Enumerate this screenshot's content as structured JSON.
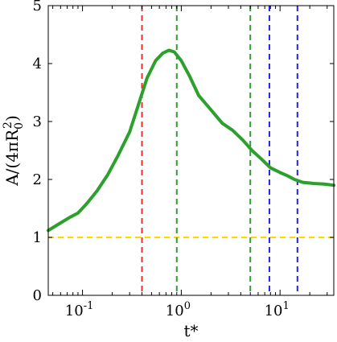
{
  "chart_data": {
    "type": "line",
    "title": "",
    "xlabel": "t*",
    "ylabel": "A/(4πR₀²)",
    "x_scale": "log",
    "xlim": [
      0.045,
      35
    ],
    "ylim": [
      0,
      5
    ],
    "grid": false,
    "legend": "none",
    "x_ticks": [
      {
        "value": 0.1,
        "base": "10",
        "exp": "-1"
      },
      {
        "value": 1,
        "base": "10",
        "exp": "0"
      },
      {
        "value": 10,
        "base": "10",
        "exp": "1"
      }
    ],
    "y_ticks": [
      0,
      1,
      2,
      3,
      4,
      5
    ],
    "y_tick_labels": [
      "0",
      "1",
      "2",
      "3",
      "4",
      "5"
    ],
    "series": [
      {
        "color": "#2ca02c",
        "x": [
          0.045,
          0.06,
          0.075,
          0.09,
          0.11,
          0.14,
          0.18,
          0.23,
          0.3,
          0.37,
          0.45,
          0.55,
          0.65,
          0.75,
          0.85,
          1.0,
          1.2,
          1.5,
          2.0,
          2.6,
          3.3,
          4.2,
          5.2,
          6.5,
          8.0,
          10.0,
          12.0,
          14.0,
          17.0,
          22.0,
          28.0,
          35.0
        ],
        "y": [
          1.12,
          1.25,
          1.35,
          1.42,
          1.58,
          1.8,
          2.08,
          2.42,
          2.82,
          3.3,
          3.75,
          4.05,
          4.18,
          4.23,
          4.2,
          4.05,
          3.8,
          3.45,
          3.2,
          2.97,
          2.85,
          2.68,
          2.5,
          2.35,
          2.2,
          2.12,
          2.06,
          2.0,
          1.95,
          1.93,
          1.92,
          1.9
        ]
      }
    ],
    "reference_lines": [
      {
        "orientation": "horizontal",
        "value": 1.0,
        "color": "#ffd700",
        "style": "dashed"
      },
      {
        "orientation": "vertical",
        "value": 0.4,
        "color": "#ff2a2a",
        "style": "dashed"
      },
      {
        "orientation": "vertical",
        "value": 0.9,
        "color": "#2ca02c",
        "style": "dashed"
      },
      {
        "orientation": "vertical",
        "value": 5.0,
        "color": "#2ca02c",
        "style": "dashed"
      },
      {
        "orientation": "vertical",
        "value": 7.8,
        "color": "#1f1fff",
        "style": "dashed"
      },
      {
        "orientation": "vertical",
        "value": 15.0,
        "color": "#1f1fff",
        "style": "dashed"
      }
    ]
  }
}
